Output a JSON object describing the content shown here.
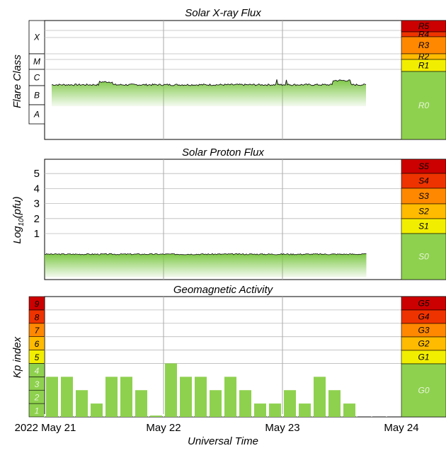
{
  "chart_data": [
    {
      "type": "area",
      "title": "Solar X-ray Flux",
      "ylabel": "Flare Class",
      "class_labels": [
        "X",
        "M",
        "C",
        "B",
        "A"
      ],
      "scale_labels": [
        "R5",
        "R4",
        "R3",
        "R2",
        "R1",
        "R0"
      ],
      "scale_colors": [
        "#cc0000",
        "#ee3300",
        "#ff8800",
        "#ffbb00",
        "#f2ee00",
        "#8ed14e"
      ],
      "level": "B-C",
      "x_range": [
        "2022-05-21",
        "2022-05-24"
      ],
      "data_end": "2022-05-23T17:00"
    },
    {
      "type": "area",
      "title": "Solar Proton Flux",
      "ylabel": "Log10(pfu)",
      "yticks": [
        "1",
        "2",
        "3",
        "4",
        "5"
      ],
      "scale_labels": [
        "S5",
        "S4",
        "S3",
        "S2",
        "S1",
        "S0"
      ],
      "scale_colors": [
        "#cc0000",
        "#ee3300",
        "#ff8800",
        "#ffbb00",
        "#f2ee00",
        "#8ed14e"
      ],
      "x_range": [
        "2022-05-21",
        "2022-05-24"
      ],
      "data_end": "2022-05-23T17:00"
    },
    {
      "type": "bar",
      "title": "Geomagnetic Activity",
      "ylabel": "Kp index",
      "xlabel": "Universal Time",
      "ylim": [
        0,
        9
      ],
      "yticks": [
        "1",
        "2",
        "3",
        "4",
        "5",
        "6",
        "7",
        "8",
        "9"
      ],
      "band_colors": [
        "#8ed14e",
        "#8ed14e",
        "#8ed14e",
        "#8ed14e",
        "#f2ee00",
        "#ffbb00",
        "#ff8800",
        "#ee3300",
        "#cc0000"
      ],
      "scale_labels": [
        "G5",
        "G4",
        "G3",
        "G2",
        "G1",
        "G0"
      ],
      "scale_colors": [
        "#cc0000",
        "#ee3300",
        "#ff8800",
        "#ffbb00",
        "#f2ee00",
        "#8ed14e"
      ],
      "kp_values": [
        3,
        3,
        2,
        1,
        3,
        3,
        2,
        0.1,
        4,
        3,
        3,
        2,
        3,
        2,
        1,
        1,
        2,
        1,
        3,
        2,
        1
      ],
      "x_ticks": [
        "2022 May 21",
        "May 22",
        "May 23",
        "May 24"
      ]
    }
  ]
}
